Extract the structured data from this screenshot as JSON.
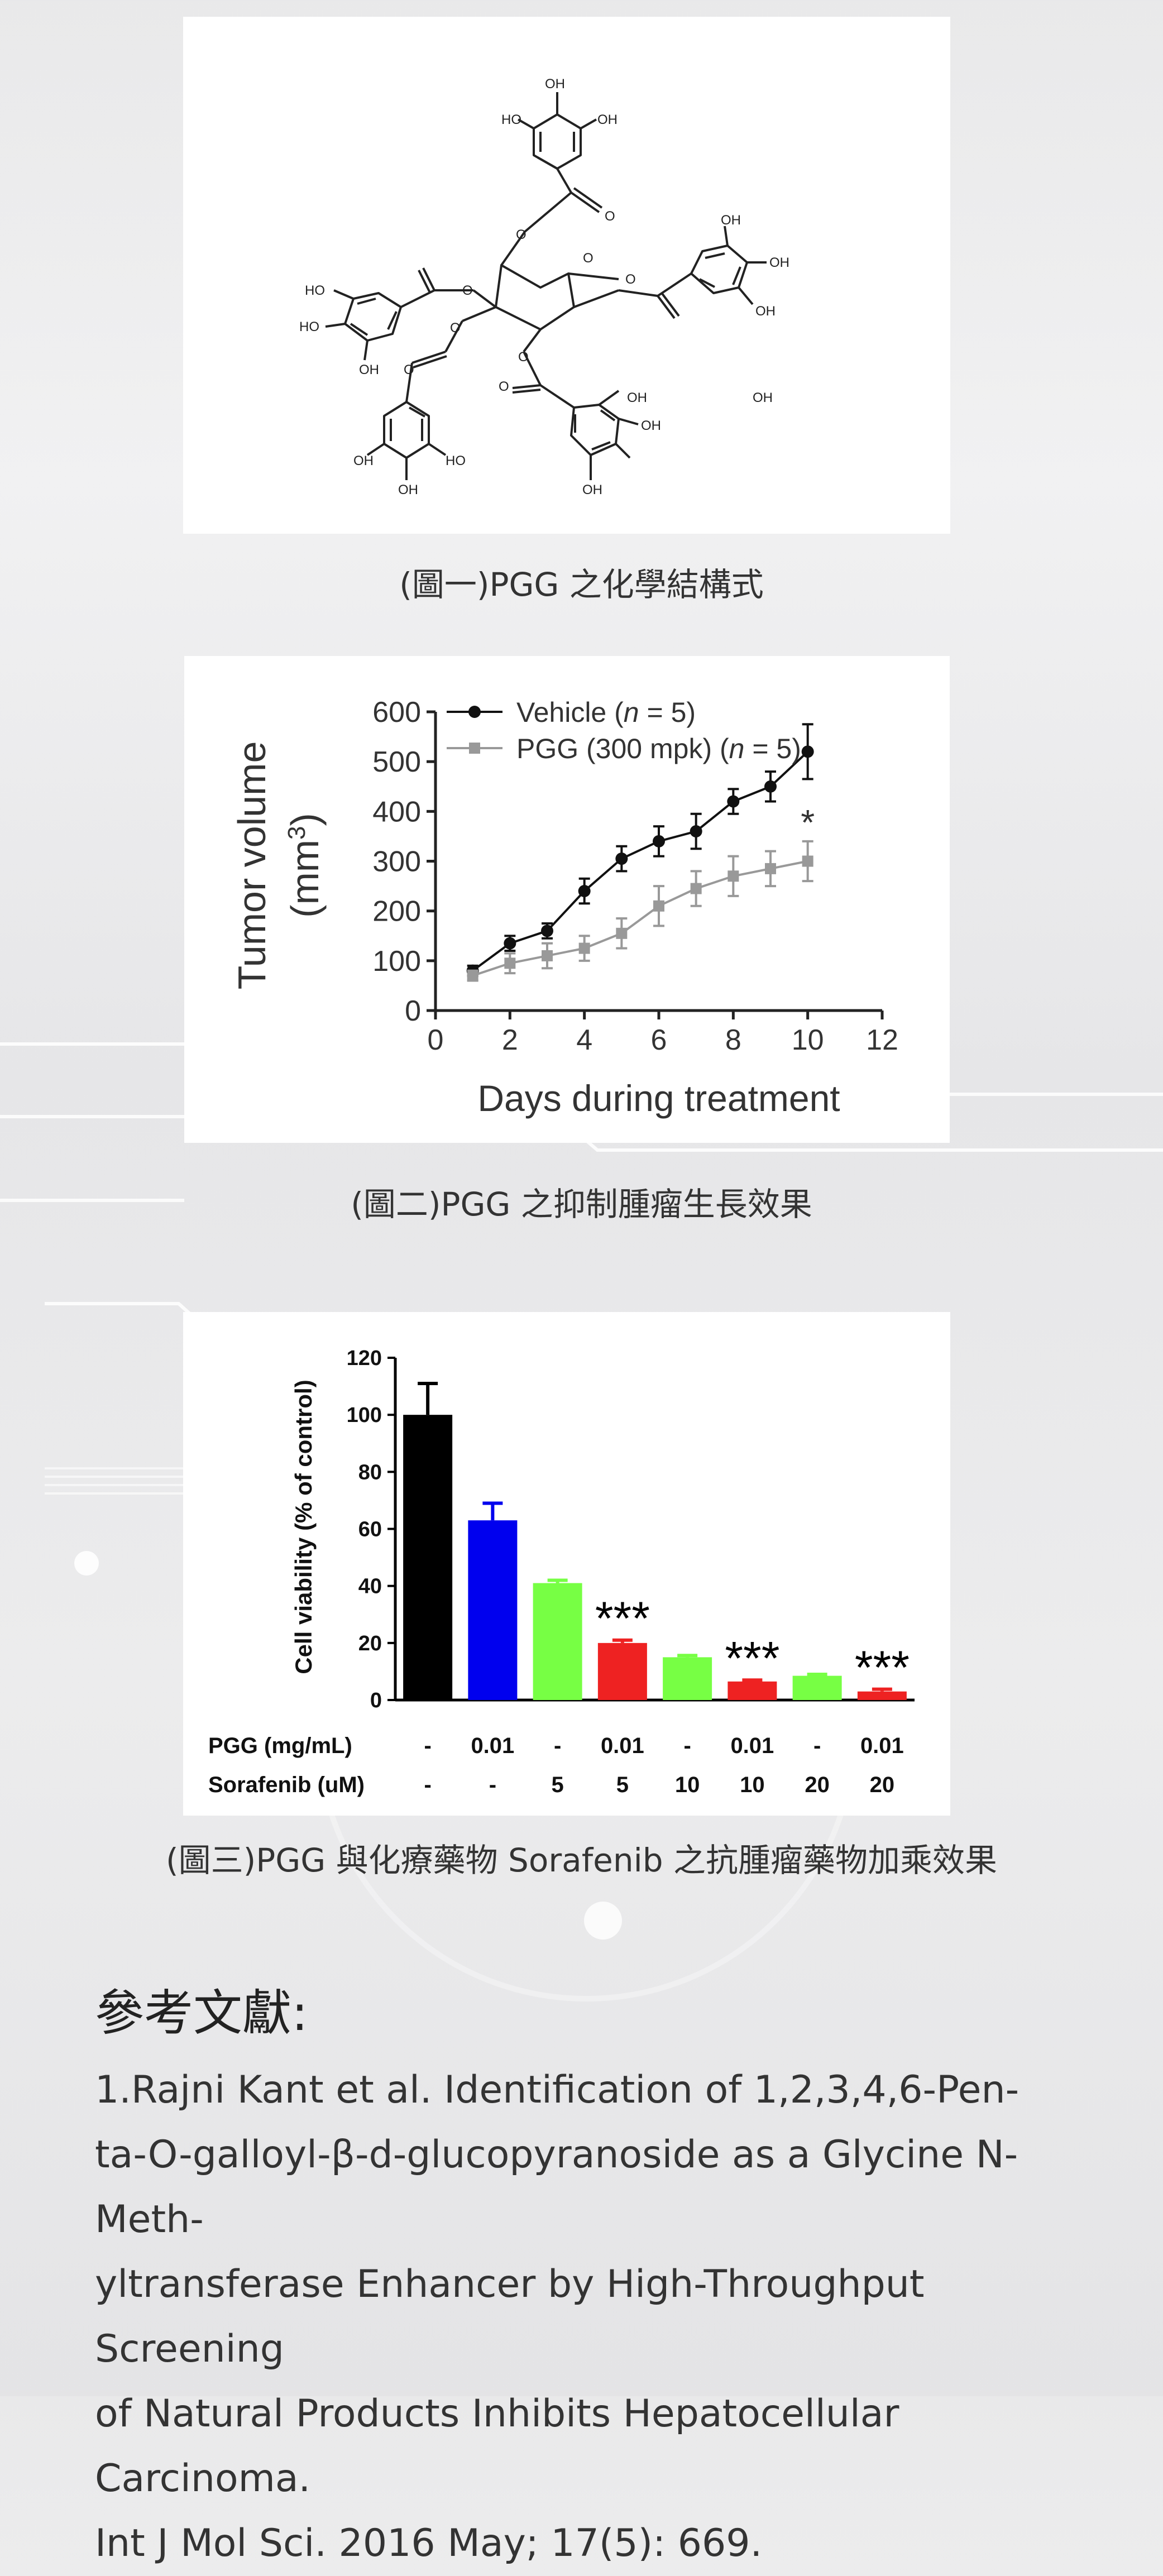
{
  "captions": {
    "fig1": "(圖一)PGG 之化學結構式",
    "fig2": "(圖二)PGG 之抑制腫瘤生長效果",
    "fig3": "(圖三)PGG 與化療藥物 Sorafenib 之抗腫瘤藥物加乘效果"
  },
  "figure1": {
    "atom_labels": [
      "OH",
      "HO",
      "OH",
      "O",
      "O",
      "O",
      "O",
      "O",
      "O",
      "O",
      "HO",
      "HO",
      "OH",
      "OH",
      "OH",
      "OH",
      "O",
      "O",
      "OH",
      "OH",
      "OH",
      "HO",
      "OH",
      "OH",
      "OH"
    ]
  },
  "figure2": {
    "chart_data": {
      "type": "line",
      "xlabel": "Days during treatment",
      "ylabel": "Tumor volume",
      "ylabel_unit": "(mm",
      "ylabel_unit_sup": "3",
      "ylabel_unit_close": ")",
      "xlim": [
        0,
        12
      ],
      "ylim": [
        0,
        600
      ],
      "x_ticks": [
        "0",
        "2",
        "4",
        "6",
        "8",
        "10",
        "12"
      ],
      "y_ticks": [
        "0",
        "100",
        "200",
        "300",
        "400",
        "500",
        "600"
      ],
      "x": [
        1,
        2,
        3,
        4,
        5,
        6,
        7,
        8,
        9,
        10
      ],
      "legend_placement": "top-left",
      "series": [
        {
          "name": "Vehicle (n = 5)",
          "name_prefix": "Vehicle (",
          "name_italic": "n",
          "name_suffix": " = 5)",
          "color": "#111111",
          "values": [
            80,
            135,
            160,
            240,
            305,
            340,
            360,
            420,
            450,
            520
          ],
          "errors": [
            10,
            15,
            15,
            25,
            25,
            30,
            35,
            25,
            30,
            55
          ]
        },
        {
          "name": "PGG (300 mpk) (n = 5)",
          "name_prefix": "PGG (300 mpk) (",
          "name_italic": "n",
          "name_suffix": " = 5)",
          "color": "#999999",
          "values": [
            70,
            95,
            110,
            125,
            155,
            210,
            245,
            270,
            285,
            300
          ],
          "errors": [
            10,
            20,
            25,
            25,
            30,
            40,
            35,
            40,
            35,
            40
          ]
        }
      ],
      "annotation": "*"
    }
  },
  "figure3": {
    "chart_data": {
      "type": "bar",
      "ylabel": "Cell viability (% of control)",
      "ylim": [
        0,
        120
      ],
      "y_ticks": [
        "0",
        "20",
        "40",
        "60",
        "80",
        "100",
        "120"
      ],
      "rows": [
        {
          "label": "PGG (mg/mL)",
          "values": [
            "-",
            "0.01",
            "-",
            "0.01",
            "-",
            "0.01",
            "-",
            "0.01"
          ]
        },
        {
          "label": "Sorafenib (uM)",
          "values": [
            "-",
            "-",
            "5",
            "5",
            "10",
            "10",
            "20",
            "20"
          ]
        }
      ],
      "values": [
        100,
        63,
        41,
        20,
        15,
        6.5,
        8.5,
        3
      ],
      "errors": [
        11,
        6,
        1,
        1,
        0.6,
        0.5,
        0.5,
        0.8
      ],
      "colors": [
        "#000000",
        "#0000ee",
        "#77ff44",
        "#ee2222",
        "#77ff44",
        "#ee2222",
        "#77ff44",
        "#ee2222"
      ],
      "significance": [
        "",
        "",
        "",
        "***",
        "",
        "***",
        "",
        "***"
      ]
    }
  },
  "references": {
    "title": "參考文獻:",
    "lines": [
      "1.Rajni Kant et al. Identification of 1,2,3,4,6-Pen-",
      "ta-O-galloyl-β-d-glucopyranoside as a Glycine N-Meth-",
      "yltransferase Enhancer by High-Throughput Screening",
      "of Natural Products Inhibits Hepatocellular Carcinoma.",
      "Int J Mol Sci. 2016 May; 17(5): 669."
    ]
  }
}
